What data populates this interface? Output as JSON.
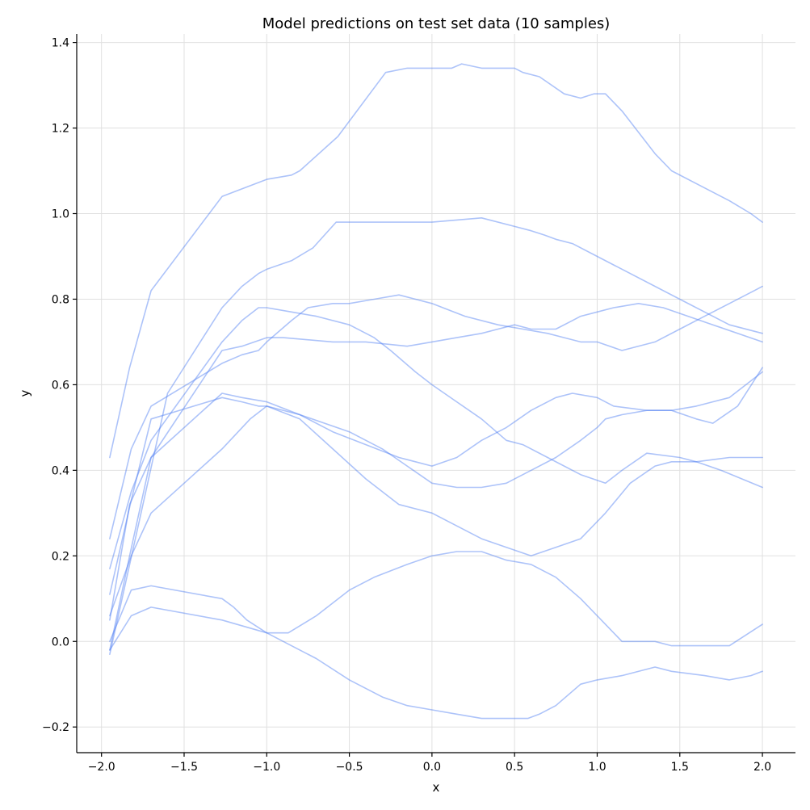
{
  "chart_data": {
    "type": "line",
    "title": "Model predictions on test set data (10 samples)",
    "xlabel": "x",
    "ylabel": "y",
    "xlim": [
      -2.15,
      2.2
    ],
    "ylim": [
      -0.26,
      1.42
    ],
    "xticks": [
      -2.0,
      -1.5,
      -1.0,
      -0.5,
      0.0,
      0.5,
      1.0,
      1.5,
      2.0
    ],
    "xtick_labels": [
      "−2.0",
      "−1.5",
      "−1.0",
      "−0.5",
      "0.0",
      "0.5",
      "1.0",
      "1.5",
      "2.0"
    ],
    "yticks": [
      -0.2,
      0.0,
      0.2,
      0.4,
      0.6,
      0.8,
      1.0,
      1.2,
      1.4
    ],
    "ytick_labels": [
      "−0.2",
      "0.0",
      "0.2",
      "0.4",
      "0.6",
      "0.8",
      "1.0",
      "1.2",
      "1.4"
    ],
    "grid": true,
    "line_color": "#4a7af2",
    "line_alpha": 0.45,
    "series": [
      {
        "x": [
          -1.95,
          -1.83,
          -1.7,
          -1.27,
          -1.0,
          -0.85,
          -0.8,
          -0.57,
          -0.28,
          -0.15,
          0.0,
          0.12,
          0.18,
          0.3,
          0.45,
          0.5,
          0.55,
          0.65,
          0.8,
          0.9,
          0.98,
          1.05,
          1.15,
          1.35,
          1.45,
          1.65,
          1.8,
          1.93,
          2.0
        ],
        "y": [
          0.43,
          0.64,
          0.82,
          1.04,
          1.08,
          1.09,
          1.1,
          1.18,
          1.33,
          1.34,
          1.34,
          1.34,
          1.35,
          1.34,
          1.34,
          1.34,
          1.33,
          1.32,
          1.28,
          1.27,
          1.28,
          1.28,
          1.24,
          1.14,
          1.1,
          1.06,
          1.03,
          1.0,
          0.98
        ]
      },
      {
        "x": [
          -1.95,
          -1.6,
          -1.27,
          -1.15,
          -1.05,
          -1.0,
          -0.85,
          -0.72,
          -0.58,
          -0.5,
          -0.4,
          -0.3,
          -0.15,
          0.0,
          0.3,
          0.5,
          0.6,
          0.68,
          0.75,
          0.85,
          1.0,
          1.5,
          1.8,
          2.0
        ],
        "y": [
          -0.03,
          0.58,
          0.78,
          0.83,
          0.86,
          0.87,
          0.89,
          0.92,
          0.98,
          0.98,
          0.98,
          0.98,
          0.98,
          0.98,
          0.99,
          0.97,
          0.96,
          0.95,
          0.94,
          0.93,
          0.9,
          0.8,
          0.74,
          0.72
        ]
      },
      {
        "x": [
          -1.95,
          -1.82,
          -1.7,
          -1.27,
          -1.15,
          -1.05,
          -1.0,
          -0.85,
          -0.75,
          -0.6,
          -0.5,
          -0.35,
          -0.2,
          0.0,
          0.2,
          0.4,
          0.55,
          0.7,
          0.8,
          0.9,
          1.0,
          1.15,
          1.35,
          1.5,
          1.65,
          1.8,
          1.95,
          2.0
        ],
        "y": [
          0.24,
          0.45,
          0.55,
          0.65,
          0.67,
          0.68,
          0.7,
          0.75,
          0.78,
          0.79,
          0.79,
          0.8,
          0.81,
          0.79,
          0.76,
          0.74,
          0.73,
          0.72,
          0.71,
          0.7,
          0.7,
          0.68,
          0.7,
          0.73,
          0.76,
          0.79,
          0.82,
          0.83
        ]
      },
      {
        "x": [
          -1.95,
          -1.82,
          -1.7,
          -1.27,
          -1.15,
          -1.05,
          -1.0,
          -0.85,
          -0.7,
          -0.5,
          -0.35,
          -0.25,
          -0.1,
          0.0,
          0.15,
          0.3,
          0.45,
          0.55,
          0.7,
          0.9,
          1.05,
          1.15,
          1.3,
          1.5,
          1.6,
          1.75,
          2.0
        ],
        "y": [
          0.17,
          0.35,
          0.47,
          0.7,
          0.75,
          0.78,
          0.78,
          0.77,
          0.76,
          0.74,
          0.71,
          0.68,
          0.63,
          0.6,
          0.56,
          0.52,
          0.47,
          0.46,
          0.43,
          0.39,
          0.37,
          0.4,
          0.44,
          0.43,
          0.42,
          0.4,
          0.36
        ]
      },
      {
        "x": [
          -1.95,
          -1.83,
          -1.7,
          -1.27,
          -1.15,
          -1.0,
          -0.9,
          -0.6,
          -0.4,
          -0.15,
          0.0,
          0.15,
          0.3,
          0.4,
          0.5,
          0.6,
          0.75,
          0.85,
          0.9,
          1.0,
          1.1,
          1.25,
          1.4,
          1.55,
          1.7,
          2.0
        ],
        "y": [
          0.05,
          0.32,
          0.43,
          0.68,
          0.69,
          0.71,
          0.71,
          0.7,
          0.7,
          0.69,
          0.7,
          0.71,
          0.72,
          0.73,
          0.74,
          0.73,
          0.73,
          0.75,
          0.76,
          0.77,
          0.78,
          0.79,
          0.78,
          0.76,
          0.74,
          0.7
        ]
      },
      {
        "x": [
          -1.95,
          -1.82,
          -1.7,
          -1.27,
          -1.15,
          -1.05,
          -1.0,
          -0.8,
          -0.6,
          -0.4,
          -0.2,
          0.0,
          0.15,
          0.3,
          0.45,
          0.6,
          0.75,
          0.85,
          1.0,
          1.1,
          1.3,
          1.45,
          1.6,
          1.7,
          1.85,
          2.0
        ],
        "y": [
          0.11,
          0.33,
          0.52,
          0.57,
          0.56,
          0.55,
          0.55,
          0.53,
          0.49,
          0.46,
          0.43,
          0.41,
          0.43,
          0.47,
          0.5,
          0.54,
          0.57,
          0.58,
          0.57,
          0.55,
          0.54,
          0.54,
          0.52,
          0.51,
          0.55,
          0.64
        ]
      },
      {
        "x": [
          -1.95,
          -1.82,
          -1.7,
          -1.27,
          -1.1,
          -1.0,
          -0.8,
          -0.6,
          -0.4,
          -0.2,
          0.0,
          0.15,
          0.3,
          0.45,
          0.6,
          0.75,
          0.9,
          1.05,
          1.2,
          1.35,
          1.45,
          1.6,
          1.8,
          1.95,
          2.0
        ],
        "y": [
          0.06,
          0.2,
          0.3,
          0.45,
          0.52,
          0.55,
          0.52,
          0.45,
          0.38,
          0.32,
          0.3,
          0.27,
          0.24,
          0.22,
          0.2,
          0.22,
          0.24,
          0.3,
          0.37,
          0.41,
          0.42,
          0.42,
          0.43,
          0.43,
          0.43
        ]
      },
      {
        "x": [
          -1.95,
          -1.83,
          -1.7,
          -1.27,
          -1.15,
          -1.0,
          -0.8,
          -0.5,
          -0.3,
          -0.15,
          0.0,
          0.15,
          0.3,
          0.45,
          0.6,
          0.75,
          0.9,
          1.0,
          1.05,
          1.15,
          1.3,
          1.45,
          1.6,
          1.8,
          2.0
        ],
        "y": [
          -0.02,
          0.2,
          0.43,
          0.58,
          0.57,
          0.56,
          0.53,
          0.49,
          0.45,
          0.41,
          0.37,
          0.36,
          0.36,
          0.37,
          0.4,
          0.43,
          0.47,
          0.5,
          0.52,
          0.53,
          0.54,
          0.54,
          0.55,
          0.57,
          0.63
        ]
      },
      {
        "x": [
          -1.95,
          -1.82,
          -1.7,
          -1.27,
          -1.2,
          -1.12,
          -1.0,
          -0.87,
          -0.7,
          -0.5,
          -0.35,
          -0.15,
          0.0,
          0.15,
          0.3,
          0.45,
          0.6,
          0.75,
          0.9,
          1.0,
          1.05,
          1.15,
          1.35,
          1.45,
          1.65,
          1.8,
          2.0
        ],
        "y": [
          0.0,
          0.12,
          0.13,
          0.1,
          0.08,
          0.05,
          0.02,
          0.02,
          0.06,
          0.12,
          0.15,
          0.18,
          0.2,
          0.21,
          0.21,
          0.19,
          0.18,
          0.15,
          0.1,
          0.06,
          0.04,
          0.0,
          0.0,
          -0.01,
          -0.01,
          -0.01,
          0.04
        ]
      },
      {
        "x": [
          -1.95,
          -1.82,
          -1.7,
          -1.27,
          -1.0,
          -0.7,
          -0.5,
          -0.3,
          -0.15,
          0.0,
          0.15,
          0.3,
          0.45,
          0.58,
          0.65,
          0.75,
          0.9,
          1.0,
          1.15,
          1.35,
          1.45,
          1.65,
          1.8,
          1.93,
          2.0
        ],
        "y": [
          -0.02,
          0.06,
          0.08,
          0.05,
          0.02,
          -0.04,
          -0.09,
          -0.13,
          -0.15,
          -0.16,
          -0.17,
          -0.18,
          -0.18,
          -0.18,
          -0.17,
          -0.15,
          -0.1,
          -0.09,
          -0.08,
          -0.06,
          -0.07,
          -0.08,
          -0.09,
          -0.08,
          -0.07
        ]
      }
    ]
  }
}
